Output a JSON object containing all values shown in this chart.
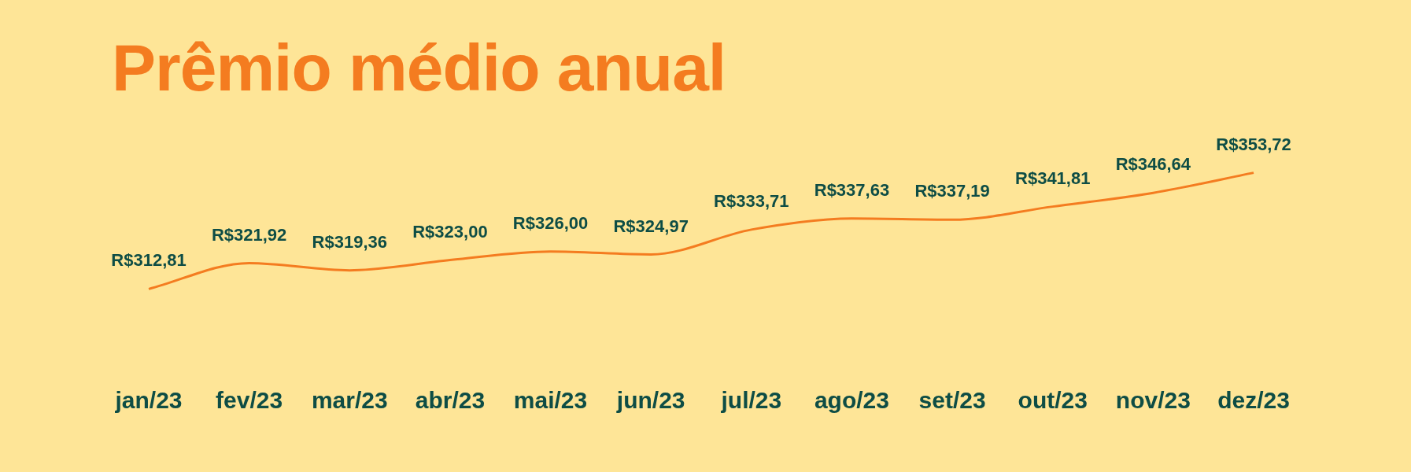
{
  "chart_data": {
    "type": "line",
    "title": "Prêmio médio anual",
    "categories": [
      "jan/23",
      "fev/23",
      "mar/23",
      "abr/23",
      "mai/23",
      "jun/23",
      "jul/23",
      "ago/23",
      "set/23",
      "out/23",
      "nov/23",
      "dez/23"
    ],
    "values": [
      312.81,
      321.92,
      319.36,
      323.0,
      326.0,
      324.97,
      333.71,
      337.63,
      337.19,
      341.81,
      346.64,
      353.72
    ],
    "value_labels": [
      "R$312,81",
      "R$321,92",
      "R$319,36",
      "R$323,00",
      "R$326,00",
      "R$324,97",
      "R$333,71",
      "R$337,63",
      "R$337,19",
      "R$341,81",
      "R$346,64",
      "R$353,72"
    ],
    "color": "#f47c20",
    "marker": "none",
    "line_style": "solid",
    "legend": false,
    "grid": false
  }
}
